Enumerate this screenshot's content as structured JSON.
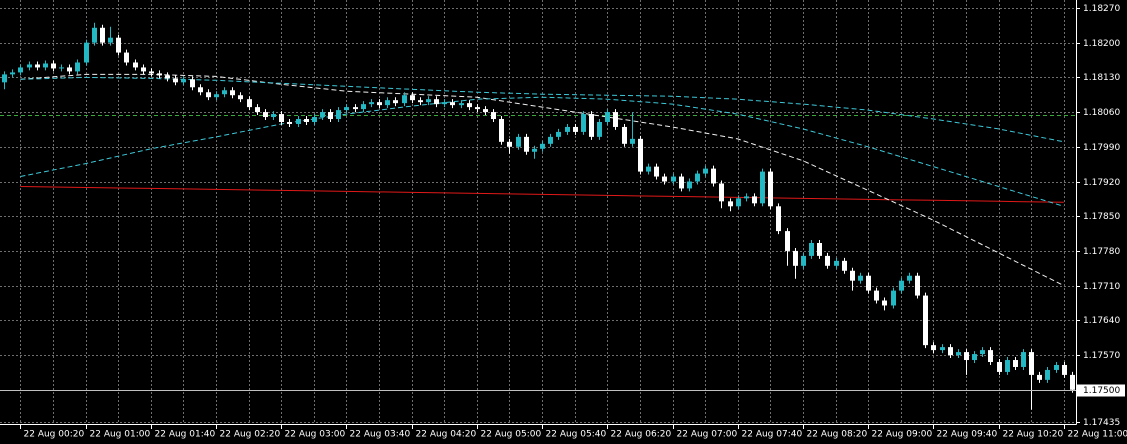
{
  "chart_data": {
    "type": "candlestick",
    "categories": [
      null,
      null,
      "22 Aug 00:20",
      null,
      null,
      null,
      null,
      null,
      null,
      null,
      "22 Aug 01:00",
      null,
      null,
      null,
      null,
      null,
      null,
      null,
      "22 Aug 01:40",
      null,
      null,
      null,
      null,
      null,
      null,
      null,
      "22 Aug 02:20",
      null,
      null,
      null,
      null,
      null,
      null,
      null,
      "22 Aug 03:00",
      null,
      null,
      null,
      null,
      null,
      null,
      null,
      "22 Aug 03:40",
      null,
      null,
      null,
      null,
      null,
      null,
      null,
      "22 Aug 04:20",
      null,
      null,
      null,
      null,
      null,
      null,
      null,
      "22 Aug 05:00",
      null,
      null,
      null,
      null,
      null,
      null,
      null,
      "22 Aug 05:40",
      null,
      null,
      null,
      null,
      null,
      null,
      null,
      "22 Aug 06:20",
      null,
      null,
      null,
      null,
      null,
      null,
      null,
      "22 Aug 07:00",
      null,
      null,
      null,
      null,
      null,
      null,
      null,
      "22 Aug 07:40",
      null,
      null,
      null,
      null,
      null,
      null,
      null,
      "22 Aug 08:20",
      null,
      null,
      null,
      null,
      null,
      null,
      null,
      "22 Aug 09:00",
      null,
      null,
      null,
      null,
      null,
      null,
      null,
      "22 Aug 09:40",
      null,
      null,
      null,
      null,
      null,
      null,
      null,
      "22 Aug 10:20",
      null,
      null,
      null,
      null,
      null,
      null,
      null,
      "22 Aug 11:00",
      null
    ],
    "open": [
      1.1812,
      1.18136,
      1.1814,
      1.1815,
      1.18156,
      1.1815,
      1.18158,
      1.18148,
      1.1815,
      1.18142,
      1.1816,
      1.182,
      1.1823,
      1.182,
      1.1821,
      1.1818,
      1.1816,
      1.1815,
      1.18142,
      1.18138,
      1.18134,
      1.18128,
      1.1812,
      1.18126,
      1.1811,
      1.181,
      1.1809,
      1.18096,
      1.18104,
      1.18094,
      1.18086,
      1.1807,
      1.1806,
      1.1805,
      1.18056,
      1.1804,
      1.18036,
      1.18046,
      1.1804,
      1.1805,
      1.1806,
      1.18046,
      1.18064,
      1.1807,
      1.18066,
      1.18076,
      1.1808,
      1.18074,
      1.18084,
      1.18078,
      1.18094,
      1.18084,
      1.1808,
      1.18086,
      1.18076,
      1.1808,
      1.18074,
      1.18078,
      1.1807,
      1.18066,
      1.1806,
      1.18046,
      1.18,
      1.1799,
      1.1801,
      1.1798,
      1.17986,
      1.17996,
      1.1801,
      1.1802,
      1.1803,
      1.1802,
      1.18056,
      1.1801,
      1.1804,
      1.1806,
      1.1803,
      1.17996,
      1.18006,
      1.1794,
      1.1795,
      1.1793,
      1.1792,
      1.1793,
      1.17906,
      1.1792,
      1.17936,
      1.17946,
      1.17916,
      1.1788,
      1.1787,
      1.17886,
      1.1789,
      1.17876,
      1.1794,
      1.1787,
      1.1782,
      1.1778,
      1.1775,
      1.1777,
      1.17796,
      1.1777,
      1.1775,
      1.1776,
      1.1774,
      1.1772,
      1.1773,
      1.177,
      1.1768,
      1.1767,
      1.177,
      1.1772,
      1.1773,
      1.1769,
      1.1759,
      1.1758,
      1.17586,
      1.1757,
      1.17576,
      1.1756,
      1.17572,
      1.1758,
      1.17556,
      1.17536,
      1.1756,
      1.17546,
      1.17576,
      1.1753,
      1.1752,
      1.1754,
      1.1755,
      1.1753
    ],
    "high": [
      1.18142,
      1.18146,
      1.18156,
      1.18162,
      1.18162,
      1.18164,
      1.18164,
      1.18156,
      1.18156,
      1.18166,
      1.18206,
      1.1824,
      1.18236,
      1.18232,
      1.18216,
      1.18186,
      1.18166,
      1.18156,
      1.18148,
      1.18144,
      1.1814,
      1.18134,
      1.18132,
      1.18132,
      1.18116,
      1.18106,
      1.18102,
      1.1811,
      1.1811,
      1.181,
      1.18092,
      1.18076,
      1.18066,
      1.18062,
      1.18062,
      1.18046,
      1.18052,
      1.18052,
      1.18056,
      1.18066,
      1.18066,
      1.1807,
      1.18076,
      1.18076,
      1.18082,
      1.18086,
      1.18086,
      1.1809,
      1.1809,
      1.181,
      1.181,
      1.1809,
      1.18092,
      1.18092,
      1.18086,
      1.18086,
      1.18084,
      1.18084,
      1.18076,
      1.18072,
      1.18066,
      1.18052,
      1.18006,
      1.18016,
      1.18016,
      1.17992,
      1.18002,
      1.18016,
      1.18026,
      1.18036,
      1.18036,
      1.18062,
      1.18062,
      1.18046,
      1.18066,
      1.18066,
      1.18036,
      1.1806,
      1.18012,
      1.17956,
      1.17956,
      1.17936,
      1.17936,
      1.17936,
      1.17926,
      1.17942,
      1.17952,
      1.17952,
      1.17922,
      1.17886,
      1.17892,
      1.17896,
      1.17896,
      1.17946,
      1.17946,
      1.17876,
      1.17826,
      1.17786,
      1.17776,
      1.17802,
      1.17802,
      1.17776,
      1.17766,
      1.17766,
      1.17746,
      1.17736,
      1.17736,
      1.17706,
      1.17686,
      1.17706,
      1.17726,
      1.17736,
      1.17736,
      1.17696,
      1.17596,
      1.17592,
      1.17592,
      1.17582,
      1.17582,
      1.17578,
      1.17586,
      1.17586,
      1.17562,
      1.17566,
      1.17566,
      1.17582,
      1.17582,
      1.17536,
      1.17546,
      1.17556,
      1.17556,
      1.17536
    ],
    "low": [
      1.18106,
      1.1813,
      1.18134,
      1.18144,
      1.18144,
      1.18144,
      1.18142,
      1.18142,
      1.18136,
      1.18136,
      1.18154,
      1.18194,
      1.18194,
      1.18194,
      1.18174,
      1.18154,
      1.18144,
      1.18136,
      1.18132,
      1.18128,
      1.18122,
      1.18114,
      1.18114,
      1.18104,
      1.18094,
      1.18084,
      1.18084,
      1.1809,
      1.18088,
      1.1808,
      1.18064,
      1.18054,
      1.18044,
      1.18044,
      1.18034,
      1.1803,
      1.1803,
      1.18034,
      1.18034,
      1.18044,
      1.1804,
      1.1804,
      1.18058,
      1.1806,
      1.1806,
      1.1807,
      1.18068,
      1.18068,
      1.18072,
      1.18072,
      1.18078,
      1.18074,
      1.18074,
      1.1807,
      1.1807,
      1.18068,
      1.18068,
      1.18064,
      1.1806,
      1.18054,
      1.1804,
      1.17994,
      1.17976,
      1.17984,
      1.17974,
      1.17966,
      1.1798,
      1.1799,
      1.18004,
      1.18014,
      1.18014,
      1.18014,
      1.18004,
      1.18004,
      1.18034,
      1.18024,
      1.1799,
      1.1799,
      1.17934,
      1.17934,
      1.17924,
      1.17914,
      1.17914,
      1.179,
      1.179,
      1.17914,
      1.1793,
      1.1791,
      1.17866,
      1.1786,
      1.17864,
      1.1788,
      1.1787,
      1.1787,
      1.17864,
      1.17814,
      1.1775,
      1.17724,
      1.17744,
      1.17764,
      1.17764,
      1.17744,
      1.17744,
      1.17734,
      1.177,
      1.17714,
      1.17694,
      1.17674,
      1.1766,
      1.17664,
      1.17694,
      1.17714,
      1.17684,
      1.17584,
      1.17574,
      1.17574,
      1.17564,
      1.17564,
      1.1753,
      1.17554,
      1.17566,
      1.1755,
      1.1753,
      1.1753,
      1.1754,
      1.1754,
      1.1746,
      1.17514,
      1.17514,
      1.17534,
      1.17524,
      1.17494
    ],
    "close": [
      1.18136,
      1.1814,
      1.1815,
      1.18156,
      1.1815,
      1.18158,
      1.18148,
      1.1815,
      1.18142,
      1.1816,
      1.182,
      1.1823,
      1.182,
      1.1821,
      1.1818,
      1.1816,
      1.1815,
      1.18142,
      1.18138,
      1.18134,
      1.18128,
      1.1812,
      1.18126,
      1.1811,
      1.181,
      1.1809,
      1.18096,
      1.18104,
      1.18094,
      1.18086,
      1.1807,
      1.1806,
      1.1805,
      1.18056,
      1.1804,
      1.18036,
      1.18046,
      1.1804,
      1.1805,
      1.1806,
      1.18046,
      1.18064,
      1.1807,
      1.18066,
      1.18076,
      1.1808,
      1.18074,
      1.18084,
      1.18078,
      1.18094,
      1.18084,
      1.1808,
      1.18086,
      1.18076,
      1.1808,
      1.18074,
      1.18078,
      1.1807,
      1.18066,
      1.1806,
      1.18046,
      1.18,
      1.1799,
      1.1801,
      1.1798,
      1.17986,
      1.17996,
      1.1801,
      1.1802,
      1.1803,
      1.1802,
      1.18056,
      1.1801,
      1.1804,
      1.1806,
      1.1803,
      1.17996,
      1.18006,
      1.1794,
      1.1795,
      1.1793,
      1.1792,
      1.1793,
      1.17906,
      1.1792,
      1.17936,
      1.17946,
      1.17916,
      1.1788,
      1.1787,
      1.17886,
      1.1789,
      1.17876,
      1.1794,
      1.1787,
      1.1782,
      1.1778,
      1.1775,
      1.1777,
      1.17796,
      1.1777,
      1.1775,
      1.1776,
      1.1774,
      1.1772,
      1.1773,
      1.177,
      1.1768,
      1.1767,
      1.177,
      1.1772,
      1.1773,
      1.1769,
      1.1759,
      1.1758,
      1.17586,
      1.1757,
      1.17576,
      1.1756,
      1.17572,
      1.1758,
      1.17556,
      1.17536,
      1.1756,
      1.17546,
      1.17576,
      1.1753,
      1.1752,
      1.1754,
      1.1755,
      1.1753,
      1.175
    ],
    "up_color": "#22b8c4",
    "down_color": "#ffffff",
    "ylim": [
      1.17431,
      1.18286
    ],
    "yticks": [
      {
        "value": 1.1827,
        "label": "1.18270"
      },
      {
        "value": 1.182,
        "label": "1.18200"
      },
      {
        "value": 1.1813,
        "label": "1.18130"
      },
      {
        "value": 1.1806,
        "label": "1.18060"
      },
      {
        "value": 1.1799,
        "label": "1.17990"
      },
      {
        "value": 1.1792,
        "label": "1.17920"
      },
      {
        "value": 1.1785,
        "label": "1.17850"
      },
      {
        "value": 1.1778,
        "label": "1.17780"
      },
      {
        "value": 1.1771,
        "label": "1.17710"
      },
      {
        "value": 1.1764,
        "label": "1.17640"
      },
      {
        "value": 1.1757,
        "label": "1.17570"
      },
      {
        "value": 1.17435,
        "label": "1.17435"
      }
    ],
    "bid": {
      "value": 1.175,
      "label": "1.17500",
      "color": "#c0c0c0"
    },
    "levels": [
      {
        "value": 1.18054,
        "color": "#3aa83a",
        "dash": true
      }
    ],
    "indicators": [
      {
        "color": "#e01818",
        "dash": false,
        "values": [
          1.1791,
          1.17908,
          1.17906,
          1.17904,
          1.17902,
          1.179,
          1.17898,
          1.17896,
          1.17894,
          1.17892,
          1.1789,
          1.17888,
          1.17886,
          1.17884,
          1.17882,
          1.1788,
          1.17878
        ]
      },
      {
        "color": "#f0f0f0",
        "dash": true,
        "values": [
          1.18126,
          1.18136,
          1.18136,
          1.18132,
          1.18116,
          1.18102,
          1.18096,
          1.1809,
          1.1807,
          1.1805,
          1.1803,
          1.18006,
          1.17962,
          1.17902,
          1.17842,
          1.17776,
          1.1771
        ]
      },
      {
        "color": "#3cc8d8",
        "dash": true,
        "values": [
          1.1793,
          1.17956,
          1.17986,
          1.1801,
          1.18036,
          1.18056,
          1.18072,
          1.18086,
          1.1809,
          1.18086,
          1.18076,
          1.18056,
          1.18026,
          1.1799,
          1.1795,
          1.1791,
          1.1787
        ]
      },
      {
        "color": "#3cc8d8",
        "dash": true,
        "values": [
          1.18126,
          1.1813,
          1.18128,
          1.18124,
          1.18118,
          1.18112,
          1.18106,
          1.181,
          1.18096,
          1.18094,
          1.18092,
          1.18086,
          1.18076,
          1.18064,
          1.18046,
          1.18026,
          1.18
        ]
      }
    ],
    "grid": true
  }
}
